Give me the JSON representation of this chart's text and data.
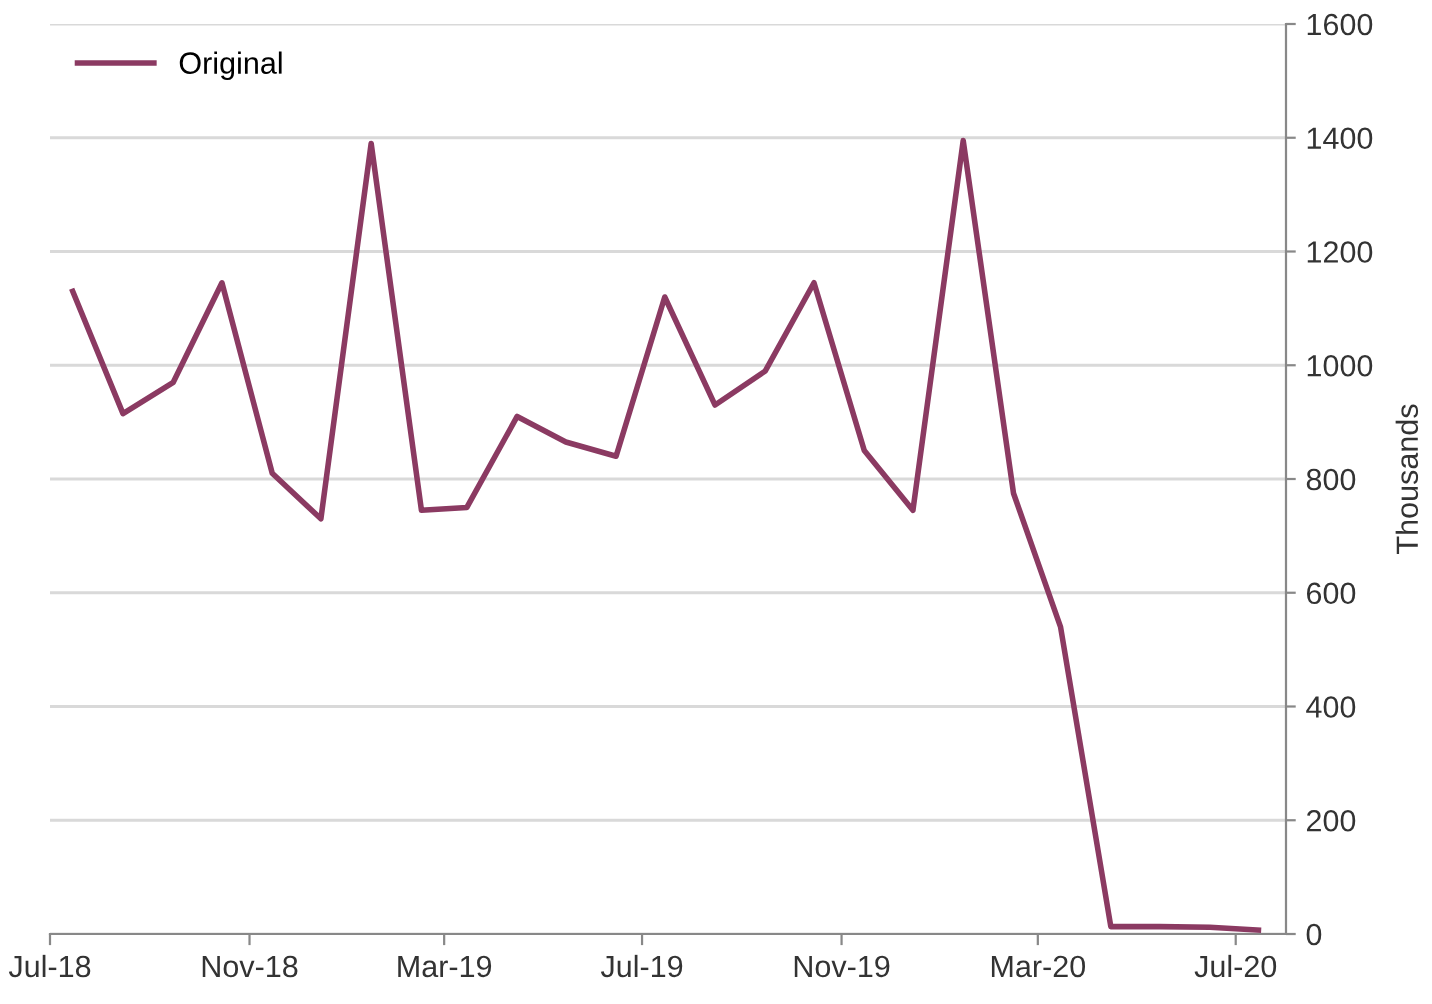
{
  "chart_data": {
    "type": "line",
    "ylabel": "Thousands",
    "x": [
      "2018-07-15",
      "2018-08-15",
      "2018-09-15",
      "2018-10-15",
      "2018-11-15",
      "2018-12-15",
      "2019-01-15",
      "2019-02-15",
      "2019-03-15",
      "2019-04-15",
      "2019-05-15",
      "2019-06-15",
      "2019-07-15",
      "2019-08-15",
      "2019-09-15",
      "2019-10-15",
      "2019-11-15",
      "2019-12-15",
      "2020-01-15",
      "2020-02-15",
      "2020-03-15",
      "2020-04-15",
      "2020-05-15",
      "2020-06-15",
      "2020-07-15"
    ],
    "series": [
      {
        "name": "Original",
        "color": "#8b3a62",
        "values": [
          1130,
          915,
          970,
          1145,
          810,
          730,
          1390,
          745,
          750,
          910,
          865,
          840,
          1120,
          930,
          990,
          1145,
          850,
          745,
          1395,
          775,
          540,
          13,
          13,
          12,
          7
        ]
      }
    ],
    "xlim": [
      "2018-07-01",
      "2020-08-01"
    ],
    "xticks": [
      {
        "value": "2018-07-01",
        "label": "Jul-18"
      },
      {
        "value": "2018-11-01",
        "label": "Nov-18"
      },
      {
        "value": "2019-03-01",
        "label": "Mar-19"
      },
      {
        "value": "2019-07-01",
        "label": "Jul-19"
      },
      {
        "value": "2019-11-01",
        "label": "Nov-19"
      },
      {
        "value": "2020-03-01",
        "label": "Mar-20"
      },
      {
        "value": "2020-07-01",
        "label": "Jul-20"
      }
    ],
    "ylim": [
      0,
      1600
    ],
    "yticks": [
      0,
      200,
      400,
      600,
      800,
      1000,
      1200,
      1400,
      1600
    ],
    "grid": "y",
    "legend": "top left",
    "marker": "none",
    "line_style": "solid"
  }
}
